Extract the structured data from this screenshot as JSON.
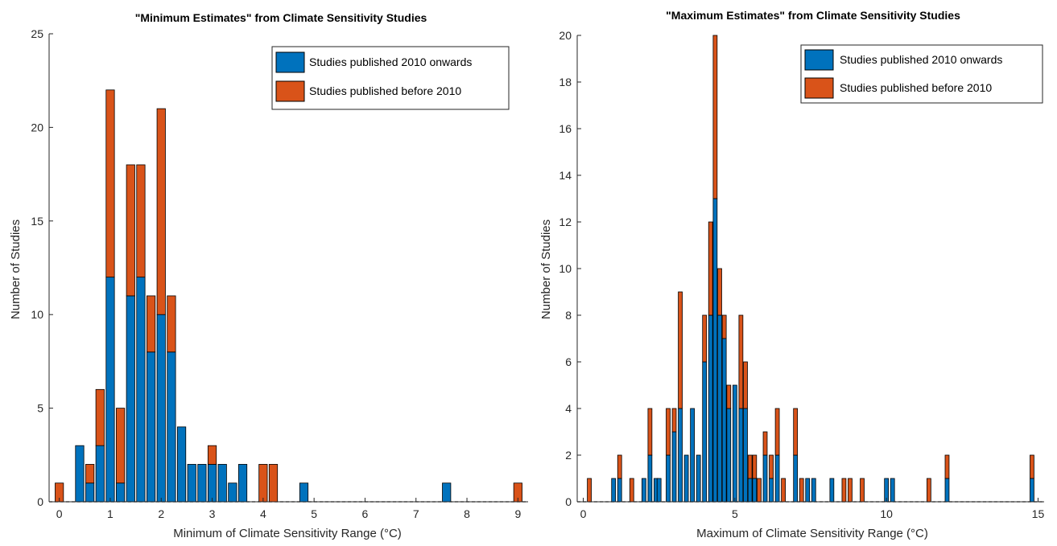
{
  "colors": {
    "recent": "#0072BD",
    "old": "#D95319",
    "edge": "#000000",
    "axis": "#262626"
  },
  "chart_data": [
    {
      "type": "bar",
      "stacked": true,
      "title": "\"Minimum Estimates\" from Climate Sensitivity Studies",
      "xlabel": "Minimum of Climate Sensitivity Range (°C)",
      "ylabel": "Number of Studies",
      "xlim": [
        -0.2,
        9.2
      ],
      "ylim": [
        0,
        25
      ],
      "xticks": [
        "0",
        "1",
        "2",
        "3",
        "4",
        "5",
        "6",
        "7",
        "8",
        "9"
      ],
      "yticks": [
        "0",
        "5",
        "10",
        "15",
        "20",
        "25"
      ],
      "bin_width": 0.2,
      "legend": {
        "position": "top-right",
        "entries": [
          "Studies published 2010 onwards",
          "Studies published before 2010"
        ]
      },
      "x": [
        0,
        0.4,
        0.6,
        0.8,
        1.0,
        1.2,
        1.4,
        1.6,
        1.8,
        2.0,
        2.2,
        2.4,
        2.6,
        2.8,
        3.0,
        3.2,
        3.4,
        3.6,
        4.0,
        4.2,
        4.8,
        7.6,
        9.0
      ],
      "series": [
        {
          "name": "Studies published 2010 onwards",
          "values": [
            0,
            3,
            1,
            3,
            12,
            1,
            11,
            12,
            8,
            10,
            8,
            4,
            2,
            2,
            2,
            2,
            1,
            2,
            0,
            0,
            1,
            1,
            0
          ]
        },
        {
          "name": "Studies published before 2010",
          "values": [
            1,
            0,
            1,
            3,
            10,
            4,
            7,
            6,
            3,
            11,
            3,
            0,
            0,
            0,
            1,
            0,
            0,
            0,
            2,
            2,
            0,
            0,
            1
          ]
        }
      ]
    },
    {
      "type": "bar",
      "stacked": true,
      "title": "\"Maximum Estimates\" from Climate Sensitivity Studies",
      "xlabel": "Maximum of Climate Sensitivity Range (°C)",
      "ylabel": "Number of Studies",
      "xlim": [
        -0.2,
        15.2
      ],
      "ylim": [
        0,
        20
      ],
      "xticks": [
        "0",
        "5",
        "10",
        "15"
      ],
      "yticks": [
        "0",
        "2",
        "4",
        "6",
        "8",
        "10",
        "12",
        "14",
        "16",
        "18",
        "20"
      ],
      "bin_width": 0.16,
      "legend": {
        "position": "top-right",
        "entries": [
          "Studies published 2010 onwards",
          "Studies published before 2010"
        ]
      },
      "x": [
        0.2,
        1.0,
        1.2,
        1.6,
        2.0,
        2.2,
        2.4,
        2.5,
        2.8,
        3.0,
        3.2,
        3.4,
        3.6,
        3.8,
        4.0,
        4.2,
        4.35,
        4.5,
        4.65,
        4.8,
        5.0,
        5.2,
        5.35,
        5.5,
        5.65,
        5.8,
        6.0,
        6.2,
        6.4,
        6.6,
        7.0,
        7.2,
        7.4,
        7.6,
        8.2,
        8.6,
        8.8,
        9.2,
        10.0,
        10.2,
        11.4,
        12.0,
        14.8
      ],
      "series": [
        {
          "name": "Studies published 2010 onwards",
          "values": [
            0,
            1,
            1,
            0,
            1,
            2,
            1,
            1,
            2,
            3,
            4,
            2,
            4,
            2,
            6,
            8,
            13,
            8,
            7,
            4,
            5,
            4,
            4,
            1,
            1,
            0,
            2,
            1,
            2,
            0,
            2,
            0,
            1,
            1,
            1,
            0,
            0,
            0,
            1,
            1,
            0,
            1,
            1
          ]
        },
        {
          "name": "Studies published before 2010",
          "values": [
            1,
            0,
            1,
            1,
            0,
            2,
            0,
            0,
            2,
            1,
            5,
            0,
            0,
            0,
            2,
            4,
            7,
            2,
            1,
            1,
            0,
            4,
            2,
            1,
            1,
            1,
            1,
            1,
            2,
            1,
            2,
            1,
            0,
            0,
            0,
            1,
            1,
            1,
            0,
            0,
            1,
            1,
            1
          ]
        }
      ]
    }
  ]
}
